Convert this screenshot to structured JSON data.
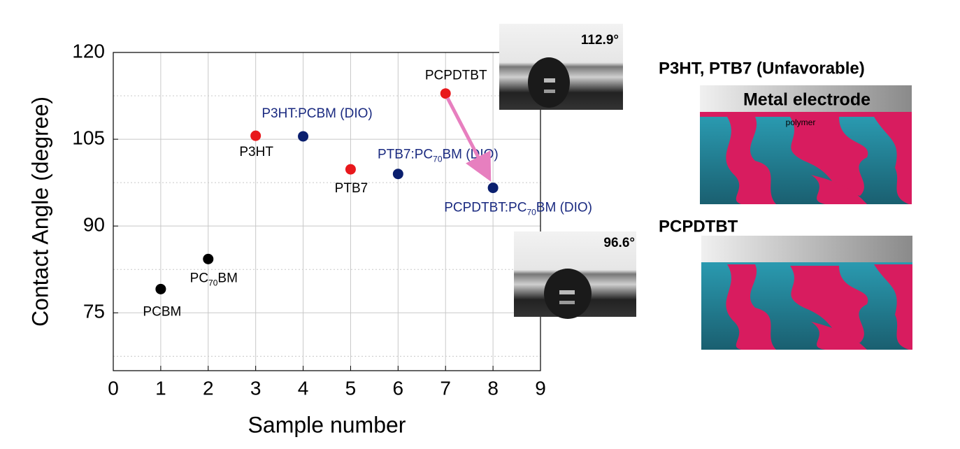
{
  "chart_data": {
    "type": "scatter",
    "xlabel": "Sample number",
    "ylabel": "Contact Angle (degree)",
    "xlim": [
      0,
      9
    ],
    "xticks": [
      0,
      1,
      2,
      3,
      4,
      5,
      6,
      7,
      8,
      9
    ],
    "ylim": [
      65,
      120
    ],
    "yticks": [
      75,
      90,
      105,
      120
    ],
    "yminor_ticks": [
      67.5,
      82.5,
      97.5,
      112.5
    ],
    "grid": true,
    "series": [
      {
        "color": "#000000",
        "label_color": "#000000",
        "x": [
          1,
          2
        ],
        "values": [
          79.1,
          84.3
        ],
        "labels": [
          [
            "PCBM"
          ],
          [
            "PC",
            "70",
            "BM"
          ]
        ]
      },
      {
        "color": "#e8181c",
        "label_color": "#000000",
        "x": [
          3,
          5,
          7
        ],
        "values": [
          105.6,
          99.8,
          112.9
        ],
        "labels": [
          [
            "P3HT"
          ],
          [
            "PTB7"
          ],
          [
            "PCPDTBT"
          ]
        ]
      },
      {
        "color": "#0a1f6e",
        "label_color": "#1a2a80",
        "x": [
          4,
          6,
          8
        ],
        "values": [
          105.5,
          99.0,
          96.6
        ],
        "labels": [
          [
            "P3HT:PCBM (DIO)"
          ],
          [
            "PTB7:PC",
            "70",
            "BM (DIO)"
          ],
          [
            "PCPDTBT:PC",
            "70",
            "BM (DIO)"
          ]
        ]
      }
    ],
    "annotations": [
      "112.9°",
      "96.6°"
    ]
  },
  "diagram": {
    "panels": [
      {
        "title": "P3HT, PTB7 (Unfavorable)",
        "electrode": "Metal electrode",
        "layer": "polymer"
      },
      {
        "title": "PCPDTBT"
      }
    ]
  }
}
